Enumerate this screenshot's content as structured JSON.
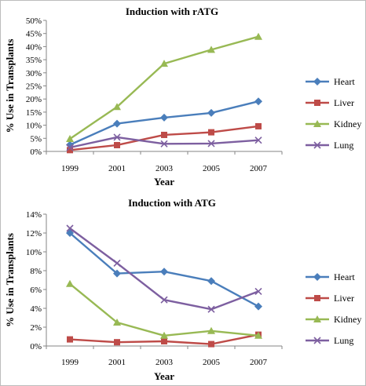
{
  "chart_data": [
    {
      "type": "line",
      "title": "Induction with rATG",
      "xlabel": "Year",
      "ylabel": "% Use in Transplants",
      "x": [
        1999,
        2001,
        2003,
        2005,
        2007
      ],
      "ylim": [
        0,
        50
      ],
      "y_ticks": [
        "0%",
        "5%",
        "10%",
        "15%",
        "20%",
        "25%",
        "30%",
        "35%",
        "40%",
        "45%",
        "50%"
      ],
      "y_step": 5,
      "grid": false,
      "legend_position": "right",
      "series": [
        {
          "name": "Heart",
          "color": "#4a7ebb",
          "marker": "diamond",
          "values": [
            2.5,
            10.6,
            12.9,
            14.7,
            19.1
          ]
        },
        {
          "name": "Liver",
          "color": "#be4b48",
          "marker": "square",
          "values": [
            0.5,
            2.4,
            6.3,
            7.3,
            9.6
          ]
        },
        {
          "name": "Kidney",
          "color": "#98b954",
          "marker": "triangle",
          "values": [
            4.8,
            17.0,
            33.5,
            38.8,
            43.8
          ]
        },
        {
          "name": "Lung",
          "color": "#7d5fa0",
          "marker": "x",
          "values": [
            1.5,
            5.4,
            2.9,
            3.0,
            4.3
          ]
        }
      ]
    },
    {
      "type": "line",
      "title": "Induction with ATG",
      "xlabel": "Year",
      "ylabel": "% Use in Transplants",
      "x": [
        1999,
        2001,
        2003,
        2005,
        2007
      ],
      "ylim": [
        0,
        14
      ],
      "y_ticks": [
        "0%",
        "2%",
        "4%",
        "6%",
        "8%",
        "10%",
        "12%",
        "14%"
      ],
      "y_step": 2,
      "grid": false,
      "legend_position": "right",
      "series": [
        {
          "name": "Heart",
          "color": "#4a7ebb",
          "marker": "diamond",
          "values": [
            12.0,
            7.7,
            7.9,
            6.9,
            4.2
          ]
        },
        {
          "name": "Liver",
          "color": "#be4b48",
          "marker": "square",
          "values": [
            0.7,
            0.4,
            0.5,
            0.2,
            1.2
          ]
        },
        {
          "name": "Kidney",
          "color": "#98b954",
          "marker": "triangle",
          "values": [
            6.6,
            2.5,
            1.1,
            1.6,
            1.1
          ]
        },
        {
          "name": "Lung",
          "color": "#7d5fa0",
          "marker": "x",
          "values": [
            12.5,
            8.8,
            4.9,
            3.9,
            5.8
          ]
        }
      ]
    }
  ]
}
